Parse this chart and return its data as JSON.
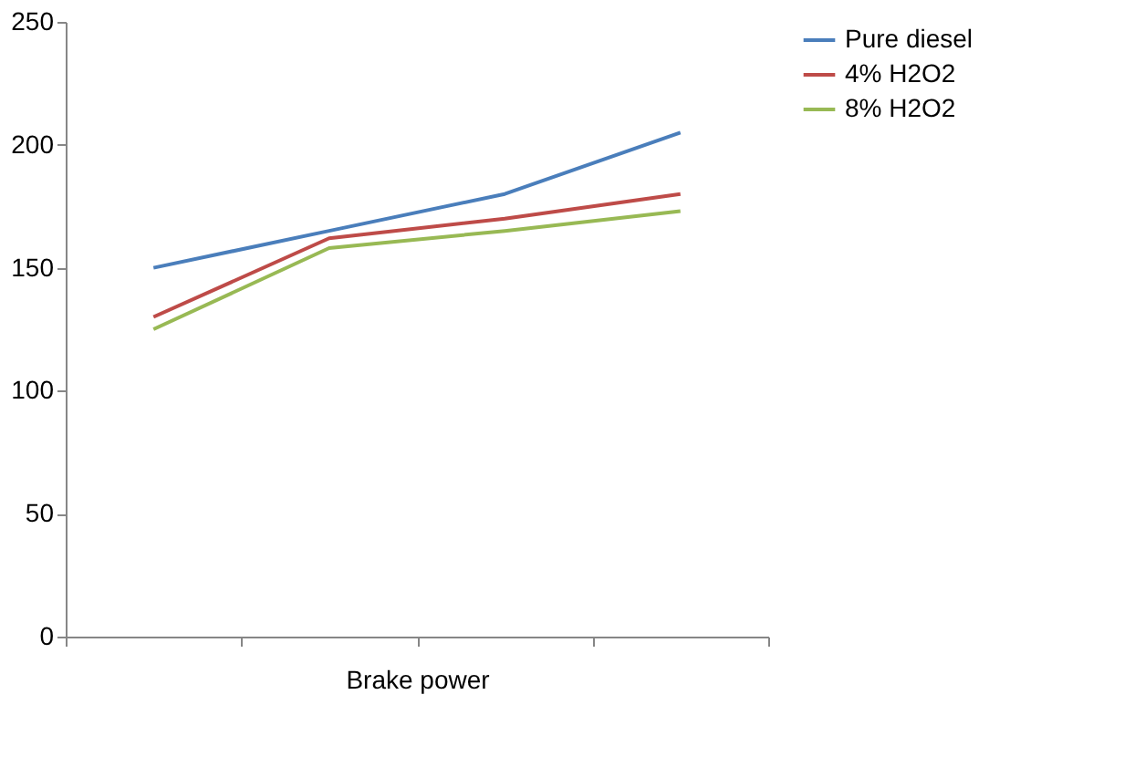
{
  "chart_data": {
    "type": "line",
    "xlabel": "Brake power",
    "categories": [
      null,
      null,
      null,
      null
    ],
    "series": [
      {
        "name": "Pure diesel",
        "color": "#4a7ebb",
        "values": [
          150,
          165,
          180,
          205
        ]
      },
      {
        "name": "4% H2O2",
        "color": "#be4b48",
        "values": [
          130,
          162,
          170,
          180
        ]
      },
      {
        "name": "8% H2O2",
        "color": "#98b954",
        "values": [
          125,
          158,
          165,
          173
        ]
      }
    ],
    "ylim": [
      0,
      250
    ],
    "yticks": [
      0,
      50,
      100,
      150,
      200,
      250
    ],
    "grid": false,
    "legend": "right",
    "marker": "none"
  }
}
